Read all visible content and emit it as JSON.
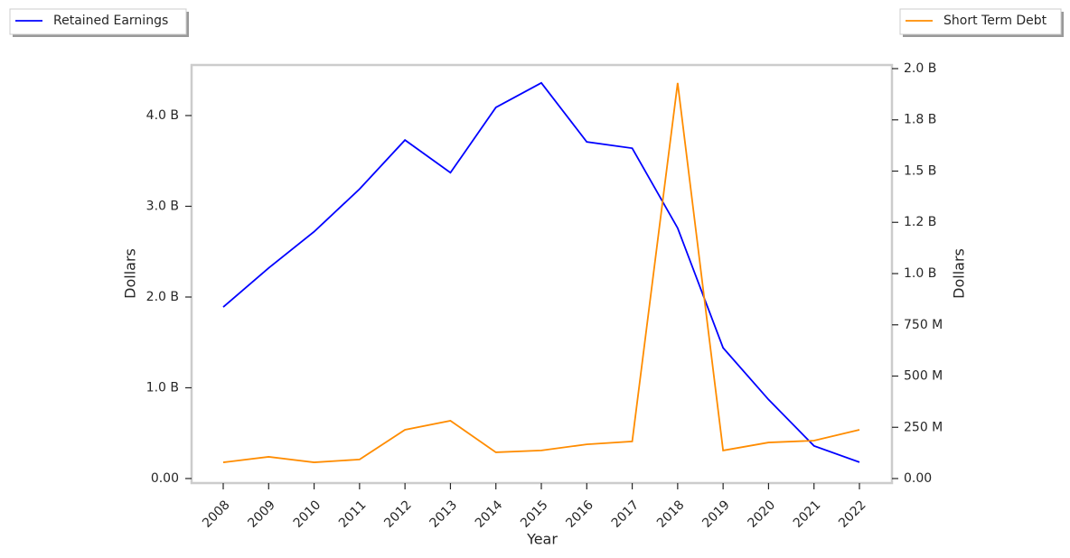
{
  "chart_data": {
    "type": "line",
    "x_label": "Year",
    "y_label": "Dollars",
    "y2_label": "Dollars",
    "categories": [
      "2008",
      "2009",
      "2010",
      "2011",
      "2012",
      "2013",
      "2014",
      "2015",
      "2016",
      "2017",
      "2018",
      "2019",
      "2020",
      "2021",
      "2022"
    ],
    "series": [
      {
        "name": "Retained Earnings",
        "color": "#0000ff",
        "axis": "y",
        "values": [
          1890000000,
          2320000000,
          2720000000,
          3190000000,
          3730000000,
          3370000000,
          4090000000,
          4360000000,
          3710000000,
          3640000000,
          2760000000,
          1440000000,
          870000000,
          360000000,
          180000000
        ]
      },
      {
        "name": "Short Term Debt",
        "color": "#ff8c00",
        "axis": "y2",
        "values": [
          79000000,
          106000000,
          79000000,
          93000000,
          238000000,
          282000000,
          128000000,
          137000000,
          167000000,
          181000000,
          1930000000,
          137000000,
          176000000,
          185000000,
          238000000
        ]
      }
    ],
    "ylim": [
      -50000000,
      4557000000
    ],
    "yticks": [
      {
        "value": 0,
        "label": "0.00"
      },
      {
        "value": 1000000000,
        "label": "1.0 B"
      },
      {
        "value": 2000000000,
        "label": "2.0 B"
      },
      {
        "value": 3000000000,
        "label": "3.0 B"
      },
      {
        "value": 4000000000,
        "label": "4.0 B"
      }
    ],
    "y2lim": [
      -22000000,
      2017600000
    ],
    "y2ticks": [
      {
        "value": 0,
        "label": "0.00"
      },
      {
        "value": 250000000,
        "label": "250 M"
      },
      {
        "value": 500000000,
        "label": "500 M"
      },
      {
        "value": 750000000,
        "label": "750 M"
      },
      {
        "value": 1000000000,
        "label": "1.0 B"
      },
      {
        "value": 1250000000,
        "label": "1.2 B"
      },
      {
        "value": 1500000000,
        "label": "1.5 B"
      },
      {
        "value": 1750000000,
        "label": "1.8 B"
      },
      {
        "value": 2000000000,
        "label": "2.0 B"
      }
    ],
    "grid": false
  }
}
